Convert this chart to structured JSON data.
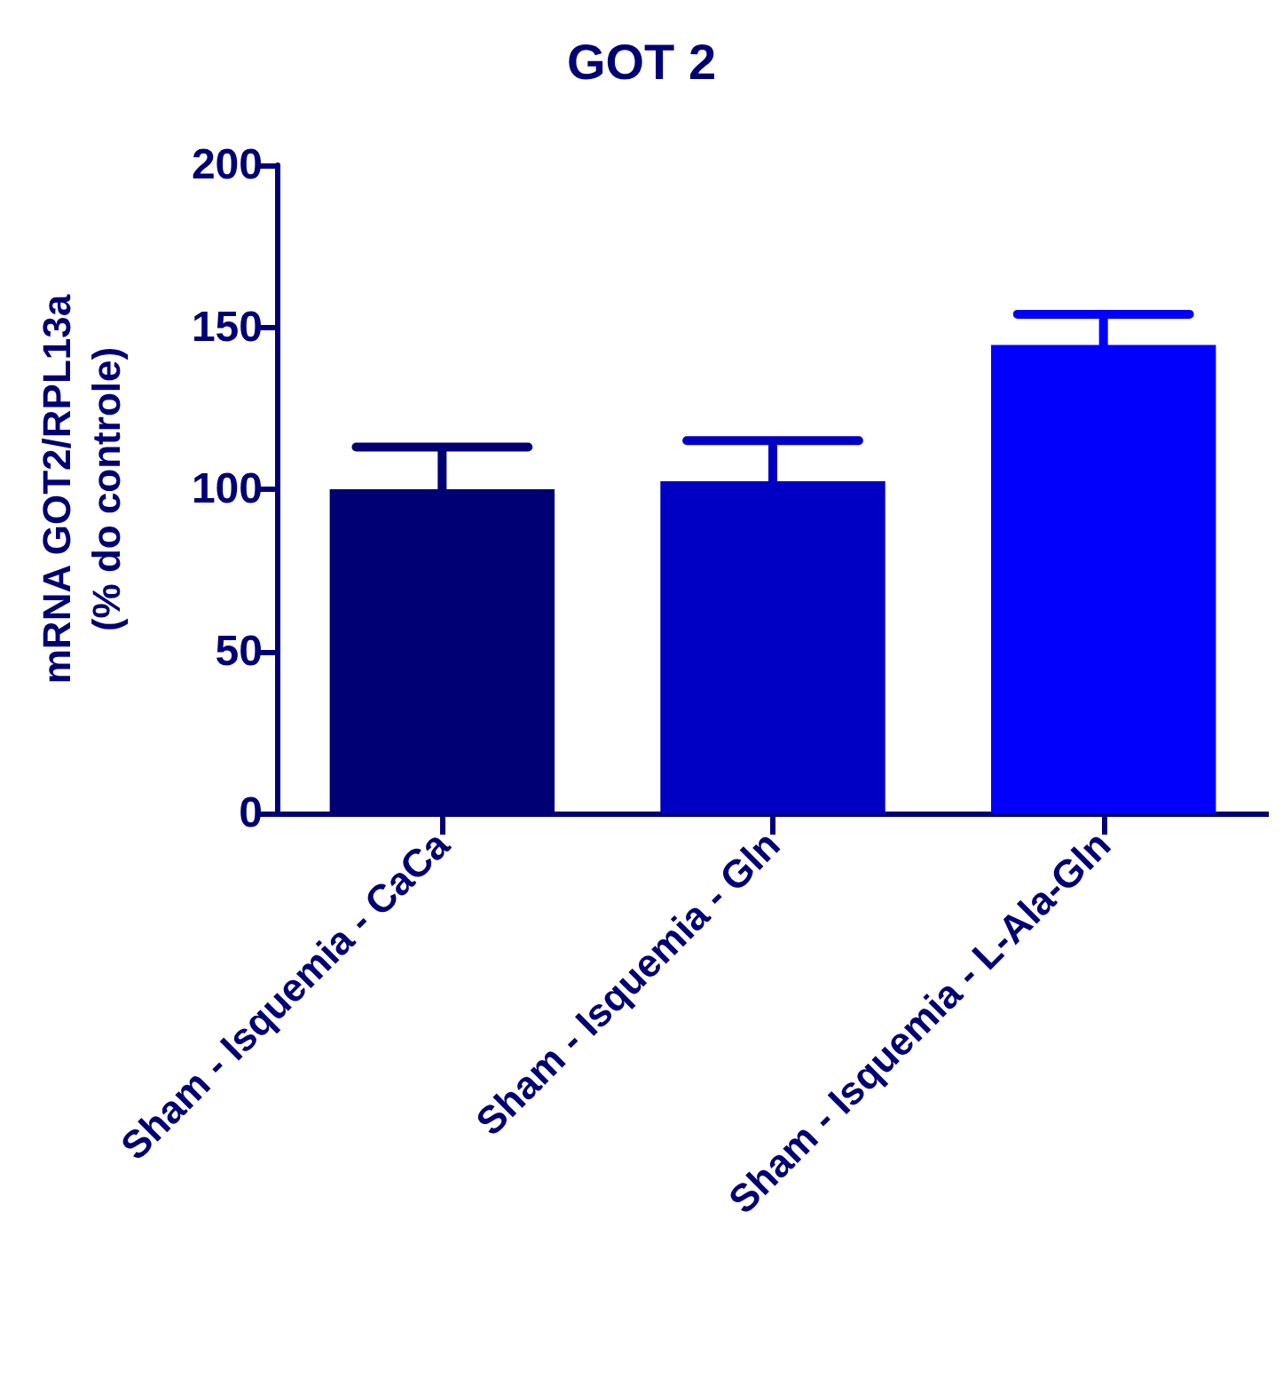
{
  "chart_data": {
    "type": "bar",
    "title": "GOT 2",
    "ylabel": "mRNA GOT2/RPL13a\n(% do controle)",
    "categories": [
      "Sham - Isquemia - CaCa",
      "Sham - Isquemia - Gln",
      "Sham - Isquemia - L-Ala-Gln"
    ],
    "values": [
      100,
      102.5,
      144.5
    ],
    "colors": [
      "#000074",
      "#0000c4",
      "#0000fc"
    ],
    "errors": [
      [
        100,
        113
      ],
      [
        102.5,
        115
      ],
      [
        144.5,
        154
      ]
    ],
    "ylim": [
      0,
      200
    ],
    "yticks": [
      0,
      50,
      100,
      150,
      200
    ],
    "grid": false
  }
}
